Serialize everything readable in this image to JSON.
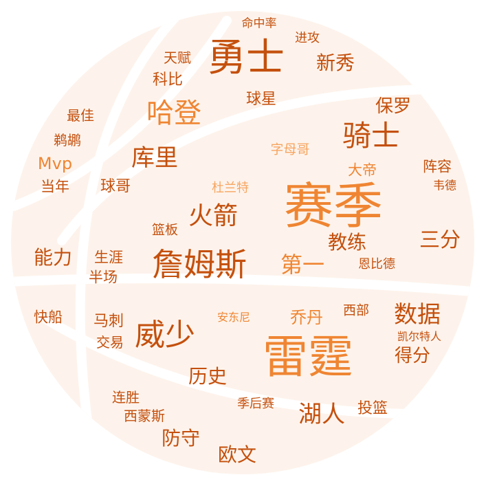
{
  "colors": {
    "ball_fill": "#fdf3ec",
    "seam": "#ffffff",
    "light": "#f7a561",
    "mid": "#ef8532",
    "dark": "#c4500d"
  },
  "words": [
    {
      "id": "w-saiji",
      "text": "赛季",
      "color": "mid"
    },
    {
      "id": "w-leiting",
      "text": "雷霆",
      "color": "mid"
    },
    {
      "id": "w-yongshi",
      "text": "勇士",
      "color": "dark"
    },
    {
      "id": "w-zhanmusi",
      "text": "詹姆斯",
      "color": "dark"
    },
    {
      "id": "w-weishao",
      "text": "威少",
      "color": "dark"
    },
    {
      "id": "w-qishi",
      "text": "骑士",
      "color": "dark"
    },
    {
      "id": "w-hadeng",
      "text": "哈登",
      "color": "mid"
    },
    {
      "id": "w-huojian",
      "text": "火箭",
      "color": "dark"
    },
    {
      "id": "w-kuli",
      "text": "库里",
      "color": "dark"
    },
    {
      "id": "w-shuju",
      "text": "数据",
      "color": "dark"
    },
    {
      "id": "w-huren",
      "text": "湖人",
      "color": "dark"
    },
    {
      "id": "w-diyi",
      "text": "第一",
      "color": "mid"
    },
    {
      "id": "w-jiaolian",
      "text": "教练",
      "color": "dark"
    },
    {
      "id": "w-sanfen",
      "text": "三分",
      "color": "dark"
    },
    {
      "id": "w-baoluo",
      "text": "保罗",
      "color": "dark"
    },
    {
      "id": "w-xinxiu",
      "text": "新秀",
      "color": "dark"
    },
    {
      "id": "w-lishi",
      "text": "历史",
      "color": "dark"
    },
    {
      "id": "w-nengli",
      "text": "能力",
      "color": "dark"
    },
    {
      "id": "w-fangshou",
      "text": "防守",
      "color": "dark"
    },
    {
      "id": "w-ouwen",
      "text": "欧文",
      "color": "dark"
    },
    {
      "id": "w-defen",
      "text": "得分",
      "color": "dark"
    },
    {
      "id": "w-qiaodan",
      "text": "乔丹",
      "color": "mid"
    },
    {
      "id": "w-qiuxing",
      "text": "球星",
      "color": "dark"
    },
    {
      "id": "w-kebi",
      "text": "科比",
      "color": "dark"
    },
    {
      "id": "w-qiuge",
      "text": "球哥",
      "color": "dark"
    },
    {
      "id": "w-mvp",
      "text": "Mvp",
      "color": "mid"
    },
    {
      "id": "w-masi",
      "text": "马刺",
      "color": "dark"
    },
    {
      "id": "w-touqiu",
      "text": "投篮",
      "color": "dark"
    },
    {
      "id": "w-shengya",
      "text": "生涯",
      "color": "dark"
    },
    {
      "id": "w-banchang",
      "text": "半场",
      "color": "dark"
    },
    {
      "id": "w-zhenrong",
      "text": "阵容",
      "color": "dark"
    },
    {
      "id": "w-dadi",
      "text": "大帝",
      "color": "mid"
    },
    {
      "id": "w-tianfu",
      "text": "天赋",
      "color": "dark"
    },
    {
      "id": "w-jingong",
      "text": "进攻",
      "color": "dark"
    },
    {
      "id": "w-mingzhonglv",
      "text": "命中率",
      "color": "dark"
    },
    {
      "id": "w-kuaichuan",
      "text": "快船",
      "color": "dark"
    },
    {
      "id": "w-dangnian",
      "text": "当年",
      "color": "dark"
    },
    {
      "id": "w-zuijia",
      "text": "最佳",
      "color": "dark"
    },
    {
      "id": "w-tihu",
      "text": "鹈鹕",
      "color": "dark"
    },
    {
      "id": "w-jiaoyi",
      "text": "交易",
      "color": "dark"
    },
    {
      "id": "w-liansheng",
      "text": "连胜",
      "color": "dark"
    },
    {
      "id": "w-ximengsi",
      "text": "西蒙斯",
      "color": "dark"
    },
    {
      "id": "w-jihousai",
      "text": "季后赛",
      "color": "dark"
    },
    {
      "id": "w-xibu",
      "text": "西部",
      "color": "dark"
    },
    {
      "id": "w-kaiertren",
      "text": "凯尔特人",
      "color": "dark"
    },
    {
      "id": "w-andongni",
      "text": "安东尼",
      "color": "mid"
    },
    {
      "id": "w-dulante",
      "text": "杜兰特",
      "color": "light"
    },
    {
      "id": "w-zimuge",
      "text": "字母哥",
      "color": "light"
    },
    {
      "id": "w-lanban",
      "text": "篮板",
      "color": "dark"
    },
    {
      "id": "w-weide",
      "text": "韦德",
      "color": "dark"
    },
    {
      "id": "w-enbide",
      "text": "恩比德",
      "color": "dark"
    }
  ]
}
